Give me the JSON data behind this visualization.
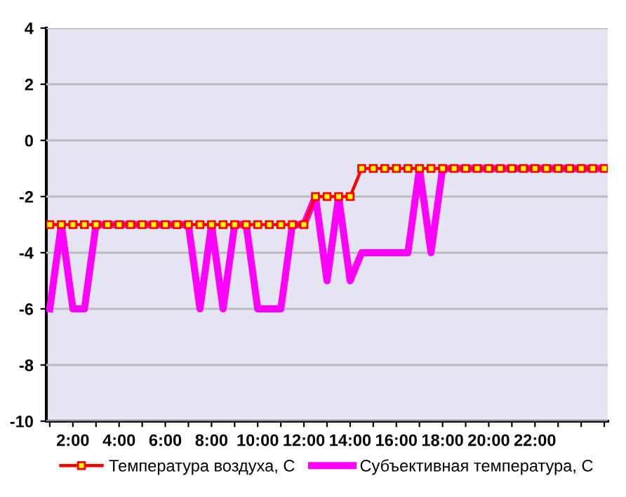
{
  "chart_data": {
    "type": "line",
    "x": [
      1,
      1.5,
      2,
      2.5,
      3,
      3.5,
      4,
      4.5,
      5,
      5.5,
      6,
      6.5,
      7,
      7.5,
      8,
      8.5,
      9,
      9.5,
      10,
      10.5,
      11,
      11.5,
      12,
      12.5,
      13,
      13.5,
      14,
      14.5,
      15,
      15.5,
      16,
      16.5,
      17,
      17.5,
      18,
      18.5,
      19,
      19.5,
      20,
      20.5,
      21,
      21.5,
      22,
      22.5,
      23,
      23.5,
      24,
      24.5,
      25
    ],
    "series": [
      {
        "name": "Субъективная температура, С",
        "color": "#ff00ff",
        "marker": "none",
        "values": [
          -6,
          -3,
          -6,
          -6,
          -3,
          -3,
          -3,
          -3,
          -3,
          -3,
          -3,
          -3,
          -3,
          -6,
          -3,
          -6,
          -3,
          -3,
          -6,
          -6,
          -6,
          -3,
          -3,
          -2,
          -5,
          -2,
          -5,
          -4,
          -4,
          -4,
          -4,
          -4,
          -1,
          -4,
          -1,
          -1,
          -1,
          -1,
          -1,
          -1,
          -1,
          -1,
          -1,
          -1,
          -1,
          -1,
          -1,
          -1,
          -1
        ]
      },
      {
        "name": "Температура воздуха, С",
        "color": "#ff0000",
        "marker": "square",
        "values": [
          -3,
          -3,
          -3,
          -3,
          -3,
          -3,
          -3,
          -3,
          -3,
          -3,
          -3,
          -3,
          -3,
          -3,
          -3,
          -3,
          -3,
          -3,
          -3,
          -3,
          -3,
          -3,
          -3,
          -2,
          -2,
          -2,
          -2,
          -1,
          -1,
          -1,
          -1,
          -1,
          -1,
          -1,
          -1,
          -1,
          -1,
          -1,
          -1,
          -1,
          -1,
          -1,
          -1,
          -1,
          -1,
          -1,
          -1,
          -1,
          -1
        ]
      }
    ],
    "xlim": [
      0.85,
      25.15
    ],
    "xticks": [
      {
        "value": 1,
        "label": null
      },
      {
        "value": 2,
        "label": "2:00"
      },
      {
        "value": 3,
        "label": null
      },
      {
        "value": 4,
        "label": "4:00"
      },
      {
        "value": 5,
        "label": null
      },
      {
        "value": 6,
        "label": "6:00"
      },
      {
        "value": 7,
        "label": null
      },
      {
        "value": 8,
        "label": "8:00"
      },
      {
        "value": 9,
        "label": null
      },
      {
        "value": 10,
        "label": "10:00"
      },
      {
        "value": 11,
        "label": null
      },
      {
        "value": 12,
        "label": "12:00"
      },
      {
        "value": 13,
        "label": null
      },
      {
        "value": 14,
        "label": "14:00"
      },
      {
        "value": 15,
        "label": null
      },
      {
        "value": 16,
        "label": "16:00"
      },
      {
        "value": 17,
        "label": null
      },
      {
        "value": 18,
        "label": "18:00"
      },
      {
        "value": 19,
        "label": null
      },
      {
        "value": 20,
        "label": "20:00"
      },
      {
        "value": 21,
        "label": null
      },
      {
        "value": 22,
        "label": "22:00"
      },
      {
        "value": 23,
        "label": null
      },
      {
        "value": 24,
        "label": null
      },
      {
        "value": 25,
        "label": null
      }
    ],
    "ylim": [
      -10,
      4
    ],
    "yticks": [
      -10,
      -8,
      -6,
      -4,
      -2,
      0,
      2,
      4
    ],
    "grid": "y",
    "legend": "bottom",
    "line_style": "solid"
  }
}
